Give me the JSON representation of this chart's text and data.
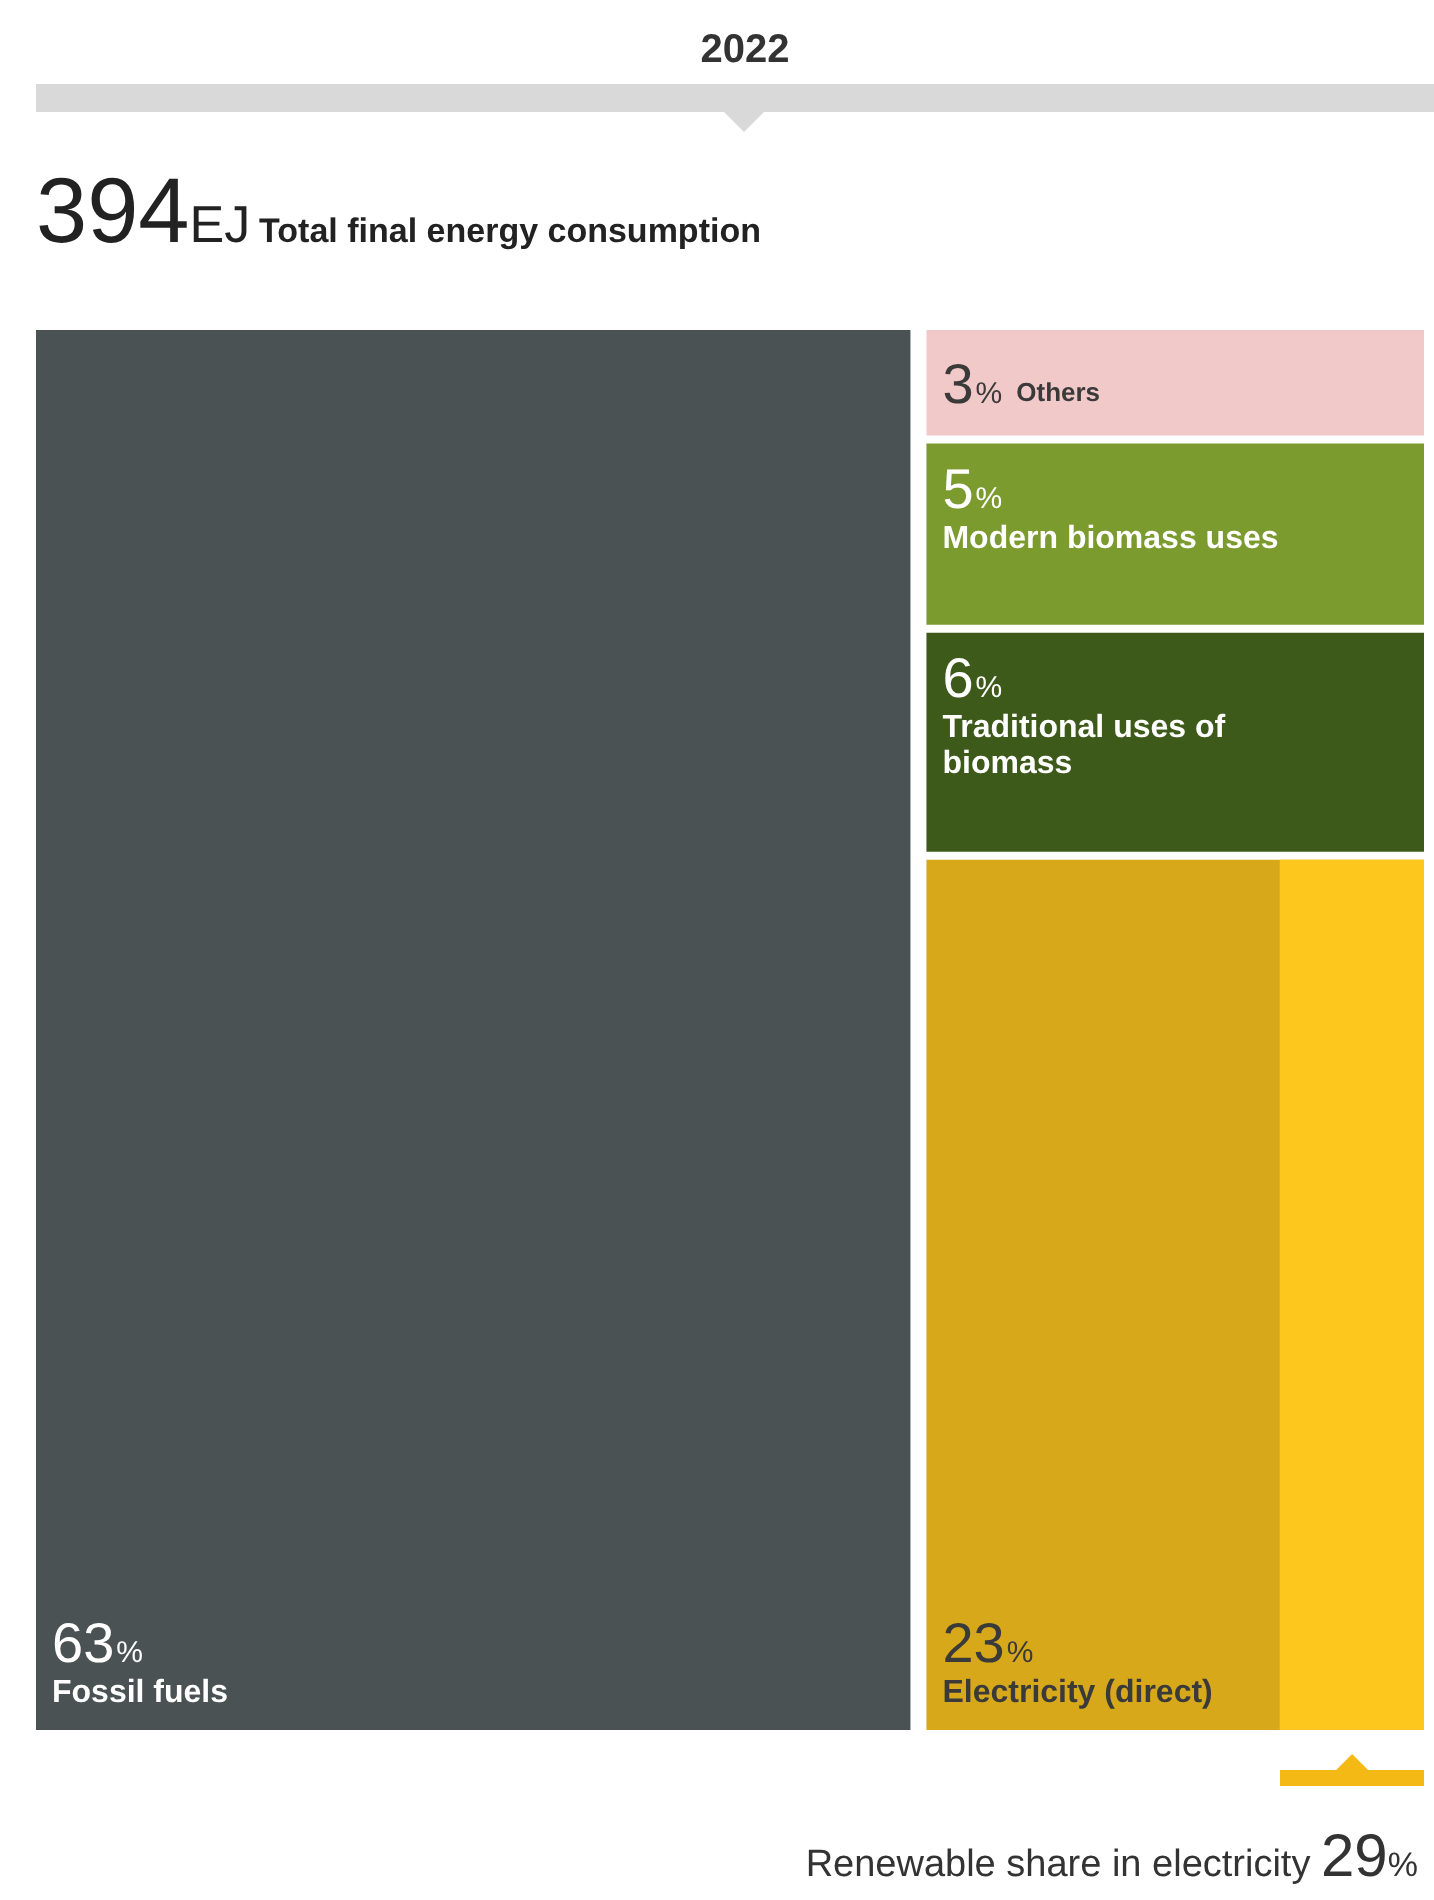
{
  "chart_data": {
    "type": "other",
    "title": "2022",
    "subtitle": "394EJ Total final energy consumption",
    "categories": [
      "Fossil fuels",
      "Others",
      "Modern biomass uses",
      "Traditional uses of biomass",
      "Electricity (direct)"
    ],
    "values": [
      63,
      3,
      5,
      6,
      23
    ],
    "value_labels": [
      "63%",
      "3%",
      "5%",
      "6%",
      "23%"
    ],
    "colors": [
      "#4b5254",
      "#f2c9c9",
      "#7b9b2f",
      "#3d5a1a",
      "#d7a91a"
    ],
    "annotations": [
      {
        "text": "Renewable share in electricity 29%",
        "x": "Electricity (direct)"
      }
    ]
  }
}
